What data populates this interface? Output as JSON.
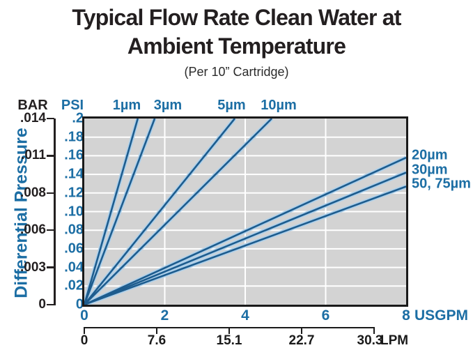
{
  "title": {
    "line1": "Typical Flow Rate Clean Water at",
    "line2": "Ambient Temperature",
    "subtitle": "(Per 10” Cartridge)"
  },
  "y_axis": {
    "axis_title": "Differential Pressure",
    "bar_unit": "BAR",
    "psi_unit": "PSI"
  },
  "x_axis": {
    "usgpm_unit": "USGPM",
    "lpm_unit": "LPM"
  },
  "colors": {
    "accent_blue": "#1c6ea4",
    "line_core": "#1d5c8e",
    "line_halo": "#aed0ea",
    "plot_background": "#d3d3d3",
    "gridline": "#ffffff",
    "text_black": "#231f20"
  },
  "chart_data": {
    "type": "line",
    "title": "Typical Flow Rate Clean Water at Ambient Temperature (Per 10” Cartridge)",
    "xlabel": "USGPM",
    "ylabel": "Differential Pressure",
    "grid": true,
    "x": {
      "min": 0,
      "max": 8,
      "tick_labels": [
        "0",
        "2",
        "4",
        "6",
        "8"
      ],
      "tick_values": [
        0,
        2,
        4,
        6,
        8
      ],
      "gridline_values": [
        2,
        4,
        6
      ],
      "secondary_scale": {
        "unit": "LPM",
        "tick_labels": [
          "0",
          "7.6",
          "15.1",
          "22.7",
          "30.3"
        ]
      }
    },
    "y": {
      "psi": {
        "min": 0,
        "max": 0.2,
        "tick_labels": [
          ".2",
          ".18",
          ".16",
          ".14",
          ".12",
          ".10",
          ".08",
          ".06",
          ".04",
          ".02",
          "0"
        ]
      },
      "bar": {
        "tick_labels": [
          ".014",
          ".011",
          ".008",
          ".006",
          ".003",
          "0"
        ]
      }
    },
    "series": [
      {
        "name": "1µm",
        "label_side": "top",
        "points": [
          [
            0,
            0
          ],
          [
            1.33,
            0.2
          ]
        ]
      },
      {
        "name": "3µm",
        "label_side": "top",
        "points": [
          [
            0,
            0
          ],
          [
            1.75,
            0.2
          ]
        ]
      },
      {
        "name": "5µm",
        "label_side": "top",
        "points": [
          [
            0,
            0
          ],
          [
            3.74,
            0.2
          ]
        ]
      },
      {
        "name": "10µm",
        "label_side": "top",
        "points": [
          [
            0,
            0
          ],
          [
            4.66,
            0.2
          ]
        ]
      },
      {
        "name": "20µm",
        "label_side": "right",
        "points": [
          [
            0,
            0
          ],
          [
            8,
            0.158
          ]
        ]
      },
      {
        "name": "30µm",
        "label_side": "right",
        "points": [
          [
            0,
            0
          ],
          [
            8,
            0.142
          ]
        ]
      },
      {
        "name": "50, 75µm",
        "label_side": "right",
        "points": [
          [
            0,
            0
          ],
          [
            8,
            0.127
          ]
        ]
      }
    ]
  }
}
